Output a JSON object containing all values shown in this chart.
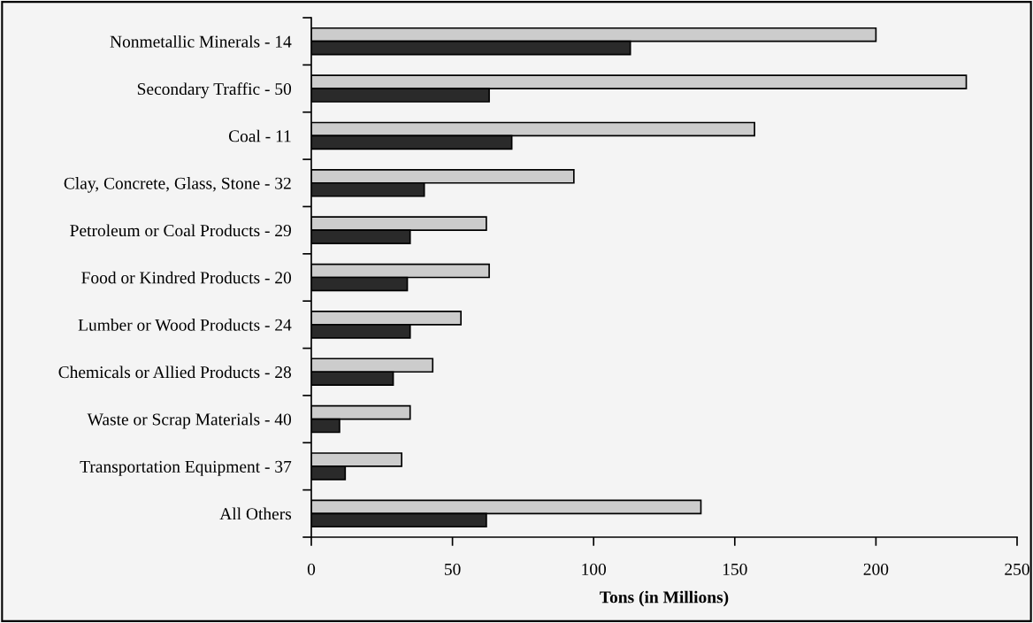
{
  "chart_data": {
    "type": "bar",
    "orientation": "horizontal",
    "xlabel": "Tons (in Millions)",
    "categories": [
      "Nonmetallic Minerals - 14",
      "Secondary Traffic - 50",
      "Coal - 11",
      "Clay, Concrete, Glass, Stone - 32",
      "Petroleum or Coal Products - 29",
      "Food or Kindred Products - 20",
      "Lumber or Wood Products - 24",
      "Chemicals or Allied Products - 28",
      "Waste or Scrap Materials - 40",
      "Transportation Equipment - 37",
      "All Others"
    ],
    "series": [
      {
        "color": "#cccccc",
        "values": [
          200,
          232,
          157,
          93,
          62,
          63,
          53,
          43,
          35,
          32,
          138
        ]
      },
      {
        "color": "#2a2a2a",
        "values": [
          113,
          63,
          71,
          40,
          35,
          34,
          35,
          29,
          10,
          12,
          62
        ]
      }
    ],
    "xlim": [
      0,
      250
    ],
    "xticks": [
      0,
      50,
      100,
      150,
      200,
      250
    ],
    "grid": false,
    "legend": false
  }
}
